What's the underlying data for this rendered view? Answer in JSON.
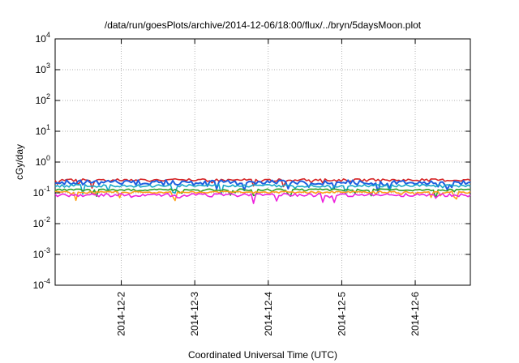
{
  "chart_data": {
    "type": "line",
    "title": "/data/run/goesPlots/archive/2014-12-06/18:00/flux/../bryn/5daysMoon.plot",
    "xlabel": "Coordinated Universal Time (UTC)",
    "ylabel": "cGy/day",
    "y_scale": "log",
    "ylim": [
      0.0001,
      10000
    ],
    "xlim": [
      1.1,
      6.75
    ],
    "y_ticks": [
      {
        "value": 0.0001,
        "label": "10",
        "exp": "-4"
      },
      {
        "value": 0.001,
        "label": "10",
        "exp": "-3"
      },
      {
        "value": 0.01,
        "label": "10",
        "exp": "-2"
      },
      {
        "value": 0.1,
        "label": "10",
        "exp": "-1"
      },
      {
        "value": 1,
        "label": "10",
        "exp": "0"
      },
      {
        "value": 10,
        "label": "10",
        "exp": "1"
      },
      {
        "value": 100,
        "label": "10",
        "exp": "2"
      },
      {
        "value": 1000,
        "label": "10",
        "exp": "3"
      },
      {
        "value": 10000,
        "label": "10",
        "exp": "4"
      }
    ],
    "x_ticks": [
      {
        "value": 2,
        "label": "2014-12-2"
      },
      {
        "value": 3,
        "label": "2014-12-3"
      },
      {
        "value": 4,
        "label": "2014-12-4"
      },
      {
        "value": 5,
        "label": "2014-12-5"
      },
      {
        "value": 6,
        "label": "2014-12-6"
      }
    ],
    "grid": true,
    "legend": "none",
    "series": [
      {
        "color": "#d62728",
        "base": 0.26,
        "noise": 0.1
      },
      {
        "color": "#1f5fe0",
        "base": 0.22,
        "noise": 0.18
      },
      {
        "color": "#17a8c8",
        "base": 0.17,
        "noise": 0.1
      },
      {
        "color": "#2ca02c",
        "base": 0.125,
        "noise": 0.07
      },
      {
        "color": "#ff9f1c",
        "base": 0.105,
        "noise": 0.07
      },
      {
        "color": "#ee22dd",
        "base": 0.085,
        "noise": 0.12
      }
    ]
  }
}
